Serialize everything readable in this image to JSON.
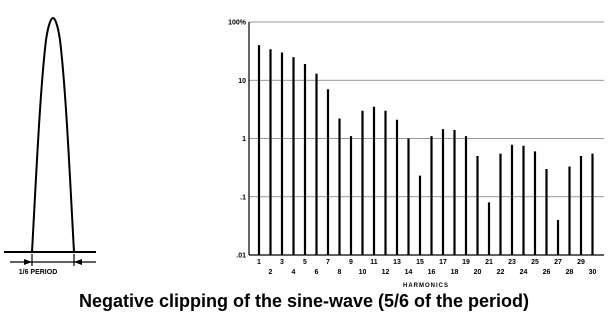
{
  "caption": "Negative clipping of the sine-wave (5/6 of the period)",
  "waveform": {
    "period_label": "1/6 PERIOD"
  },
  "chart_data": {
    "type": "bar",
    "xlabel": "HARMONICS",
    "ylabel": "",
    "yscale": "log",
    "ylim": [
      0.01,
      100
    ],
    "y_ticks": [
      0.01,
      0.1,
      1,
      10,
      100
    ],
    "y_tick_labels": [
      ".01",
      ".1",
      "1",
      "10",
      "100%"
    ],
    "categories": [
      1,
      2,
      3,
      4,
      5,
      6,
      7,
      8,
      9,
      10,
      11,
      12,
      13,
      14,
      15,
      16,
      17,
      18,
      19,
      20,
      21,
      22,
      23,
      24,
      25,
      26,
      27,
      28,
      29,
      30
    ],
    "values": [
      40,
      34,
      30,
      25,
      19,
      13,
      7,
      2.2,
      1.1,
      3,
      3.5,
      3,
      2.1,
      1,
      0.23,
      1.1,
      1.45,
      1.4,
      1.1,
      0.5,
      0.08,
      0.55,
      0.78,
      0.75,
      0.6,
      0.3,
      0.04,
      0.33,
      0.5,
      0.55
    ],
    "grid": true
  }
}
